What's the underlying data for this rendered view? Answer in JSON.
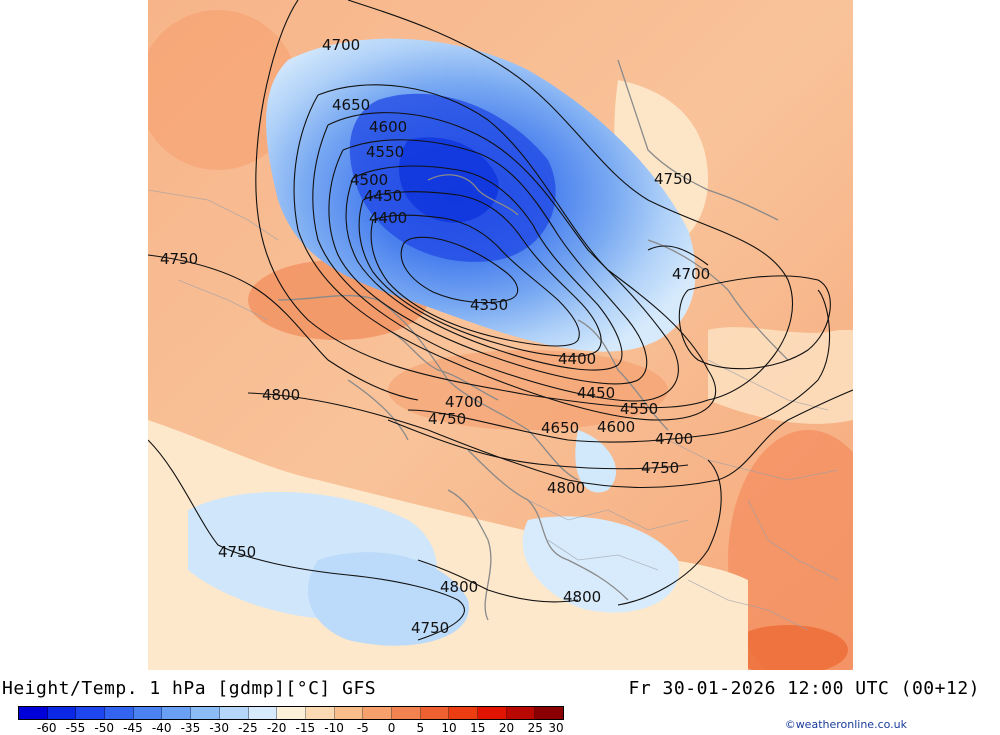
{
  "title": "Height/Temp. 1 hPa [gdmp][°C] GFS",
  "valid_time": "Fr 30-01-2026 12:00 UTC (00+12)",
  "credit": "©weatheronline.co.uk",
  "legend": {
    "ticks": [
      "-60",
      "-55",
      "-50",
      "-45",
      "-40",
      "-35",
      "-30",
      "-25",
      "-20",
      "-15",
      "-10",
      "-5",
      "0",
      "5",
      "10",
      "15",
      "20",
      "25",
      "30"
    ],
    "colors": [
      "#0000d8",
      "#0a28e6",
      "#1e46ee",
      "#3264f0",
      "#4a82f2",
      "#6aa0f4",
      "#8cbcf6",
      "#b4d6fa",
      "#d6eafc",
      "#fdf0d8",
      "#fbd9b3",
      "#f8bd8a",
      "#f6a16c",
      "#f28250",
      "#ef6030",
      "#ec3c12",
      "#e01400",
      "#b80800",
      "#8a0000"
    ]
  },
  "contours": [
    {
      "label": "4700"
    },
    {
      "label": "4650"
    },
    {
      "label": "4600"
    },
    {
      "label": "4550"
    },
    {
      "label": "4500"
    },
    {
      "label": "4450"
    },
    {
      "label": "4400"
    },
    {
      "label": "4750"
    },
    {
      "label": "4750"
    },
    {
      "label": "4700"
    },
    {
      "label": "4350"
    },
    {
      "label": "4400"
    },
    {
      "label": "4800"
    },
    {
      "label": "4700"
    },
    {
      "label": "4450"
    },
    {
      "label": "4550"
    },
    {
      "label": "4750"
    },
    {
      "label": "4650"
    },
    {
      "label": "4600"
    },
    {
      "label": "4700"
    },
    {
      "label": "4750"
    },
    {
      "label": "4800"
    },
    {
      "label": "4750"
    },
    {
      "label": "4800"
    },
    {
      "label": "4800"
    },
    {
      "label": "4750"
    }
  ]
}
